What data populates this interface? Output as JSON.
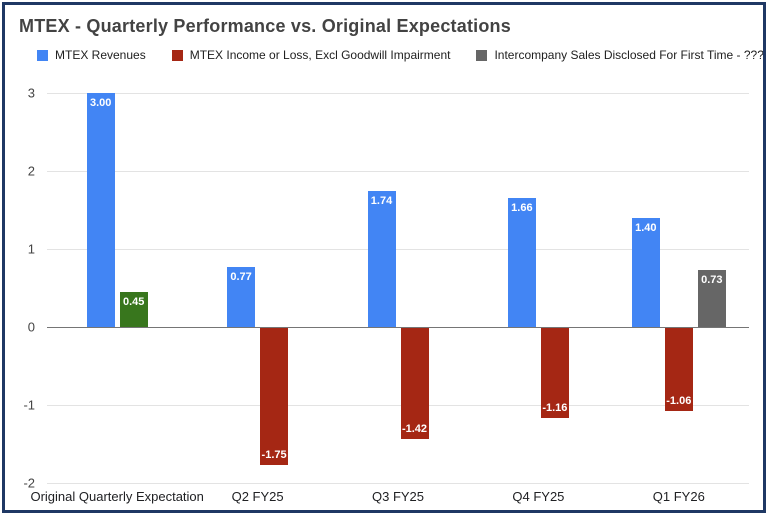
{
  "title": "MTEX - Quarterly Performance vs. Original Expectations",
  "legend": [
    {
      "label": "MTEX Revenues",
      "color": "#4285f4"
    },
    {
      "label": "MTEX Income or Loss, Excl Goodwill Impairment",
      "color": "#a52714"
    },
    {
      "label": "Intercompany Sales Disclosed For First Time - ?????",
      "color": "#666666"
    }
  ],
  "chart_data": {
    "type": "bar",
    "title": "MTEX - Quarterly Performance vs. Original Expectations",
    "categories": [
      "Original Quarterly Expectation",
      "Q2 FY25",
      "Q3 FY25",
      "Q4 FY25",
      "Q1 FY26"
    ],
    "series": [
      {
        "name": "MTEX Revenues",
        "color": "#4285f4",
        "values": [
          3.0,
          0.77,
          1.74,
          1.66,
          1.4
        ]
      },
      {
        "name": "MTEX Income or Loss, Excl Goodwill Impairment",
        "color": "#a52714",
        "values": [
          0.45,
          -1.75,
          -1.42,
          -1.16,
          -1.06
        ],
        "point_colors": [
          "#38761d",
          null,
          null,
          null,
          null
        ]
      },
      {
        "name": "Intercompany Sales Disclosed For First Time - ?????",
        "color": "#666666",
        "values": [
          null,
          null,
          null,
          null,
          0.73
        ]
      }
    ],
    "ylim": [
      -2,
      3
    ],
    "yticks": [
      3,
      2,
      1,
      0,
      -1,
      -2
    ],
    "grid": true,
    "legend_position": "top",
    "value_label_decimals": 2
  },
  "style": {
    "frame_border_color": "#1f3864",
    "grid_color": "#e3e3e3",
    "zero_line_color": "#757575",
    "title_color": "#434343"
  }
}
